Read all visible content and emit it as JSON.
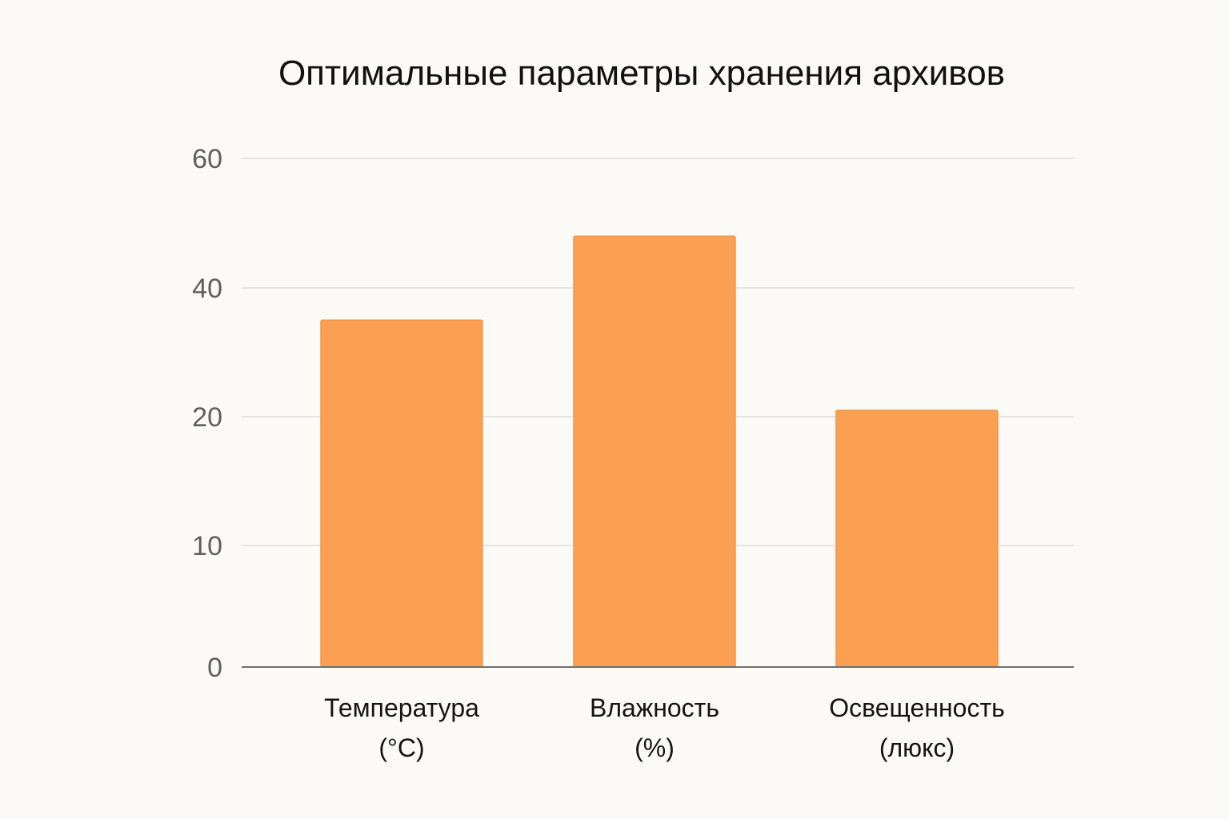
{
  "chart_data": {
    "type": "bar",
    "title": "Оптимальные параметры хранения архивов",
    "xlabel": "",
    "ylabel": "",
    "categories": [
      [
        "Температура",
        "(°C)"
      ],
      [
        "Влажность",
        "(%)"
      ],
      [
        "Освещенность",
        "(люкс)"
      ]
    ],
    "values": [
      35,
      48,
      21
    ],
    "ylim": [
      0,
      60
    ],
    "yticks": [
      {
        "value": 0,
        "label": "0"
      },
      {
        "value": 10,
        "label": "10"
      },
      {
        "value": 20,
        "label": "20"
      },
      {
        "value": 40,
        "label": "40"
      },
      {
        "value": 60,
        "label": "60"
      }
    ],
    "grid": true,
    "bar_color": "#fb9f53",
    "bar_edge_color": "#f39645"
  }
}
